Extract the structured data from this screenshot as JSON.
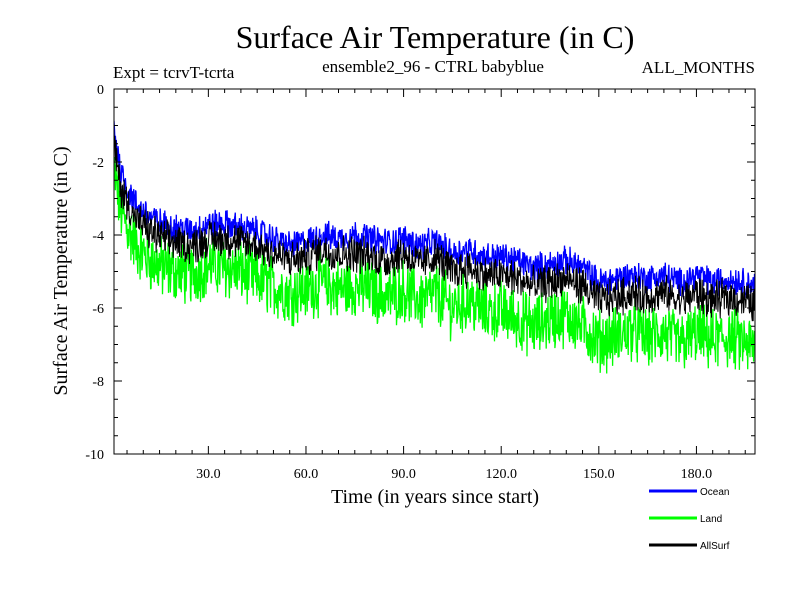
{
  "chart_data": {
    "type": "line",
    "title": "Surface Air Temperature (in C)",
    "subtitle_left": "Expt = tcrvT-tcrta",
    "subtitle_center": "ensemble2_96 - CTRL babyblue",
    "subtitle_right": "ALL_MONTHS",
    "xlabel": "Time (in years since start)",
    "ylabel": "Surface Air Temperature (in C)",
    "xlim": [
      1,
      198
    ],
    "ylim": [
      -10,
      0
    ],
    "x_ticks": [
      30,
      60,
      90,
      120,
      150,
      180
    ],
    "x_tick_labels": [
      "30.0",
      "60.0",
      "90.0",
      "120.0",
      "150.0",
      "180.0"
    ],
    "y_ticks": [
      0,
      -2,
      -4,
      -6,
      -8,
      -10
    ],
    "y_tick_labels": [
      "0",
      "-2",
      "-4",
      "-6",
      "-8",
      "-10"
    ],
    "grid": false,
    "legend_position": "bottom-right outside",
    "x": [
      1,
      2,
      3,
      5,
      8,
      12,
      16,
      20,
      25,
      30,
      35,
      40,
      45,
      50,
      55,
      60,
      65,
      70,
      75,
      80,
      85,
      90,
      95,
      100,
      105,
      110,
      115,
      120,
      125,
      130,
      135,
      140,
      145,
      150,
      155,
      160,
      165,
      170,
      175,
      180,
      185,
      190,
      195,
      198
    ],
    "series": [
      {
        "name": "Ocean",
        "color": "#0000ff",
        "values": [
          -1.0,
          -1.7,
          -2.2,
          -2.7,
          -3.2,
          -3.5,
          -3.7,
          -3.8,
          -3.9,
          -3.7,
          -3.7,
          -3.8,
          -3.9,
          -4.1,
          -4.3,
          -4.2,
          -4.0,
          -4.1,
          -4.0,
          -4.1,
          -4.2,
          -4.1,
          -4.3,
          -4.2,
          -4.5,
          -4.4,
          -4.6,
          -4.6,
          -4.7,
          -4.9,
          -4.8,
          -4.7,
          -4.9,
          -5.3,
          -5.2,
          -5.1,
          -5.2,
          -5.1,
          -5.3,
          -5.1,
          -5.3,
          -5.2,
          -5.3,
          -5.4
        ]
      },
      {
        "name": "Land",
        "color": "#00ff00",
        "values": [
          -2.2,
          -2.8,
          -3.3,
          -3.8,
          -4.3,
          -4.7,
          -4.9,
          -5.0,
          -5.1,
          -4.8,
          -4.9,
          -5.0,
          -5.2,
          -5.4,
          -5.6,
          -5.5,
          -5.3,
          -5.5,
          -5.4,
          -5.5,
          -5.7,
          -5.5,
          -5.8,
          -5.6,
          -6.0,
          -5.8,
          -6.1,
          -6.1,
          -6.3,
          -6.5,
          -6.3,
          -6.2,
          -6.5,
          -6.9,
          -6.8,
          -6.6,
          -6.8,
          -6.7,
          -7.0,
          -6.7,
          -6.9,
          -6.8,
          -7.0,
          -7.1
        ]
      },
      {
        "name": "AllSurf",
        "color": "#000000",
        "values": [
          -1.5,
          -2.1,
          -2.7,
          -3.1,
          -3.6,
          -3.9,
          -4.1,
          -4.2,
          -4.3,
          -4.1,
          -4.1,
          -4.2,
          -4.3,
          -4.5,
          -4.7,
          -4.6,
          -4.4,
          -4.5,
          -4.5,
          -4.6,
          -4.7,
          -4.5,
          -4.8,
          -4.6,
          -5.0,
          -4.9,
          -5.1,
          -5.1,
          -5.2,
          -5.4,
          -5.3,
          -5.2,
          -5.4,
          -5.8,
          -5.7,
          -5.6,
          -5.7,
          -5.6,
          -5.8,
          -5.6,
          -5.8,
          -5.7,
          -5.8,
          -5.9
        ]
      }
    ],
    "fluctuation_amplitude": {
      "Ocean": 0.35,
      "Land": 0.75,
      "AllSurf": 0.45
    }
  }
}
